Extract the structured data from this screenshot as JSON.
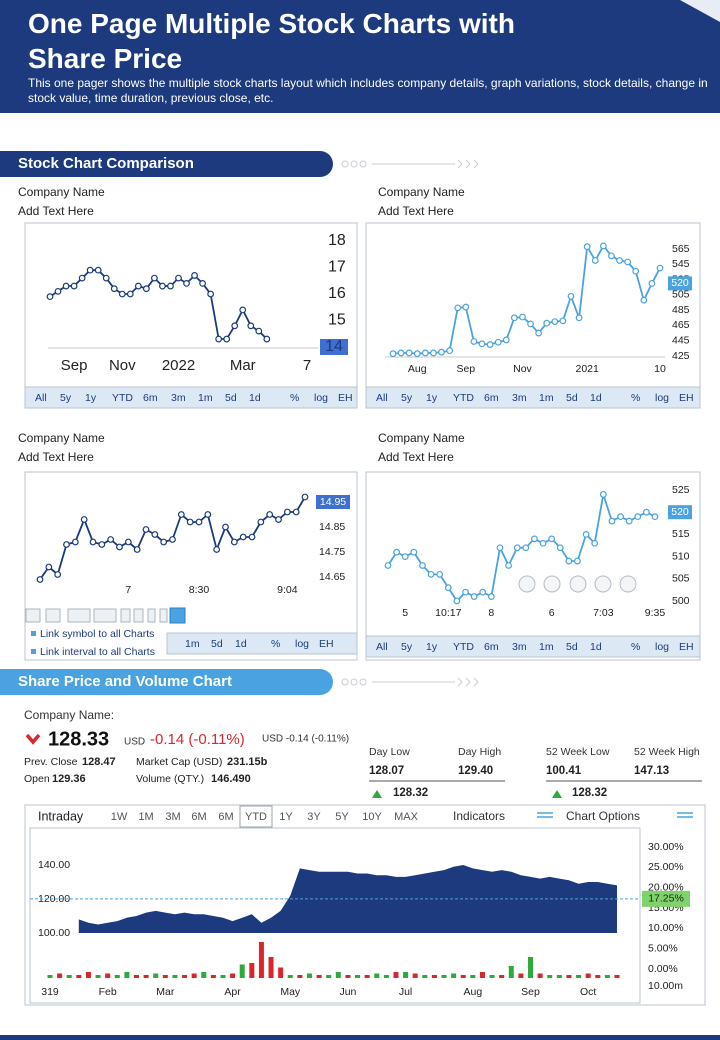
{
  "header": {
    "title": "One Page Multiple Stock Charts with Share Price",
    "subtitle": "This one pager shows the multiple stock charts layout which includes company details, graph variations, stock details, change in stock value, time duration, previous close, etc."
  },
  "sections": [
    "Stock Chart Comparison",
    "Share Price and Volume Chart"
  ],
  "panels": [
    {
      "company": "Company Name",
      "text": "Add Text Here"
    },
    {
      "company": "Company Name",
      "text": "Add Text Here"
    },
    {
      "company": "Company Name",
      "text": "Add Text Here"
    },
    {
      "company": "Company Name",
      "text": "Add Text Here"
    }
  ],
  "toolbar": [
    "All",
    "5y",
    "1y",
    "YTD",
    "6m",
    "3m",
    "1m",
    "5d",
    "1d",
    "%",
    "log",
    "EH"
  ],
  "link_labels": [
    "Link symbol to all Charts",
    "Link interval to all Charts"
  ],
  "quote": {
    "label": "Company Name:",
    "price": "128.33",
    "currency": "USD",
    "change": "-0.14 (-0.11%)",
    "change_small": "USD -0.14 (-0.11%)",
    "details": [
      {
        "label": "Prev. Close",
        "value": "128.47"
      },
      {
        "label": "Market Cap (USD)",
        "value": "231.15b"
      },
      {
        "label": "Open",
        "value": "129.36"
      },
      {
        "label": "Volume (QTY.)",
        "value": "146.490"
      }
    ],
    "stats": [
      {
        "label": "Day Low",
        "value": "128.07"
      },
      {
        "label": "Day High",
        "value": "129.40"
      },
      {
        "label": "52 Week Low",
        "value": "100.41"
      },
      {
        "label": "52 Week High",
        "value": "147.13"
      }
    ],
    "range_values": [
      "128.32",
      "128.32"
    ]
  },
  "big_chart_controls": {
    "interval": "Intraday",
    "tabs": [
      "1W",
      "1M",
      "3M",
      "6M",
      "6M",
      "YTD",
      "1Y",
      "3Y",
      "5Y",
      "10Y",
      "MAX"
    ],
    "active_tab": 5,
    "indicators": "Indicators",
    "options": "Chart Options"
  },
  "chart_data": [
    {
      "type": "line",
      "color": "#1c3a7d",
      "markers": true,
      "categories": [
        null,
        null,
        null,
        "Sep",
        null,
        null,
        null,
        null,
        null,
        "Nov",
        null,
        null,
        null,
        null,
        null,
        null,
        "2022",
        null,
        null,
        null,
        null,
        null,
        null,
        null,
        "Mar",
        null,
        null,
        null,
        null,
        null,
        null,
        null,
        "7"
      ],
      "values": [
        15.9,
        16.1,
        16.3,
        16.3,
        16.6,
        16.9,
        16.9,
        16.6,
        16.2,
        16.0,
        16.0,
        16.3,
        16.2,
        16.6,
        16.3,
        16.3,
        16.6,
        16.4,
        16.7,
        16.4,
        16.0,
        14.3,
        14.3,
        14.8,
        15.4,
        14.8,
        14.6,
        14.3,
        null,
        null,
        null,
        null,
        null
      ],
      "ylim": [
        14,
        18
      ],
      "yticks": [
        14,
        15,
        16,
        17,
        18
      ],
      "current": 14
    },
    {
      "type": "line",
      "color": "#4aa3e0",
      "markers": true,
      "categories": [
        null,
        null,
        null,
        "Aug",
        null,
        null,
        null,
        null,
        null,
        "Sep",
        null,
        null,
        null,
        null,
        null,
        null,
        "Nov",
        null,
        null,
        null,
        null,
        null,
        null,
        null,
        "2021",
        null,
        null,
        null,
        null,
        null,
        null,
        null,
        null,
        "10"
      ],
      "values": [
        428,
        429,
        429,
        428,
        429,
        429,
        430,
        432,
        488,
        489,
        444,
        441,
        440,
        443,
        446,
        475,
        476,
        467,
        455,
        468,
        470,
        471,
        503,
        475,
        568,
        550,
        569,
        556,
        550,
        548,
        536,
        498,
        520,
        540
      ],
      "ylim": [
        425,
        565
      ],
      "yticks": [
        425,
        445,
        465,
        485,
        505,
        525,
        545,
        565
      ],
      "current": 520
    },
    {
      "type": "line",
      "color": "#1c3a7d",
      "markers": true,
      "categories": [
        null,
        null,
        null,
        null,
        null,
        null,
        null,
        null,
        null,
        null,
        "7",
        null,
        null,
        null,
        null,
        null,
        null,
        null,
        "8:30",
        null,
        null,
        null,
        null,
        null,
        null,
        null,
        null,
        null,
        "9:04",
        null,
        null
      ],
      "values": [
        14.64,
        14.69,
        14.66,
        14.78,
        14.79,
        14.88,
        14.79,
        14.78,
        14.8,
        14.77,
        14.79,
        14.76,
        14.84,
        14.82,
        14.79,
        14.8,
        14.9,
        14.87,
        14.87,
        14.9,
        14.76,
        14.85,
        14.79,
        14.81,
        14.81,
        14.87,
        14.9,
        14.88,
        14.91,
        14.91,
        14.97
      ],
      "ylim": [
        14.65,
        14.95
      ],
      "yticks": [
        14.65,
        14.75,
        14.85,
        14.95
      ],
      "current": 14.95
    },
    {
      "type": "line",
      "color": "#4aa3e0",
      "markers": true,
      "categories": [
        null,
        null,
        "5",
        null,
        null,
        null,
        null,
        "10:17",
        null,
        null,
        null,
        null,
        "8",
        null,
        null,
        null,
        null,
        null,
        null,
        "6",
        null,
        null,
        null,
        null,
        null,
        "7:03",
        null,
        null,
        null,
        null,
        null,
        "9:35"
      ],
      "values": [
        508,
        511,
        510,
        511,
        508,
        506,
        506,
        503,
        500,
        502,
        501,
        502,
        501,
        512,
        508,
        512,
        512,
        514,
        513,
        514,
        512,
        509,
        509,
        515,
        513,
        524,
        518,
        519,
        518,
        519,
        520,
        519
      ],
      "ylim": [
        500,
        525
      ],
      "yticks": [
        500,
        505,
        510,
        515,
        520,
        525
      ],
      "current": 520
    },
    {
      "type": "area",
      "color": "#1c3a7d",
      "categories": [
        "319",
        null,
        null,
        null,
        null,
        null,
        "Feb",
        null,
        null,
        null,
        null,
        null,
        "Mar",
        null,
        null,
        null,
        null,
        null,
        null,
        "Apr",
        null,
        null,
        null,
        null,
        null,
        "May",
        null,
        null,
        null,
        null,
        null,
        "Jun",
        null,
        null,
        null,
        null,
        null,
        "Jul",
        null,
        null,
        null,
        null,
        null,
        null,
        "Aug",
        null,
        null,
        null,
        null,
        null,
        "Sep",
        null,
        null,
        null,
        null,
        null,
        "Oct",
        null,
        null,
        null
      ],
      "values": [
        null,
        null,
        null,
        108,
        106,
        105,
        106,
        107,
        109,
        110,
        112,
        113,
        112,
        111,
        112,
        111,
        111,
        110,
        109,
        107,
        109,
        111,
        106,
        109,
        113,
        122,
        138,
        137,
        136,
        136,
        136,
        136,
        135,
        135,
        134,
        134,
        133,
        133,
        134,
        135,
        136,
        137,
        139,
        140,
        138,
        137,
        136,
        137,
        136,
        134,
        133,
        132,
        133,
        132,
        131,
        129,
        130,
        130,
        129,
        128
      ],
      "ylim": [
        100,
        150
      ],
      "yticks": [
        {
          "value": 100,
          "label": "100.00"
        },
        {
          "value": 120,
          "label": "120.00"
        },
        {
          "value": 140,
          "label": "140.00"
        }
      ],
      "y2lim": [
        0,
        30
      ],
      "y2ticks": [
        {
          "value": 30,
          "label": "30.00%"
        },
        {
          "value": 25,
          "label": "25.00%"
        },
        {
          "value": 20,
          "label": "20.00%"
        },
        {
          "value": 15,
          "label": "15.00%"
        },
        {
          "value": 10,
          "label": "10.00%"
        },
        {
          "value": 5,
          "label": "5.00%"
        },
        {
          "value": 0,
          "label": "0.00%"
        }
      ],
      "current": {
        "value": 17.25,
        "label": "17.25%"
      },
      "volume": [
        1,
        1.5,
        1,
        1,
        2,
        1,
        1.5,
        1,
        2,
        1,
        1,
        1.5,
        1,
        1,
        1,
        1.5,
        2,
        1,
        1,
        1.5,
        4.5,
        5,
        12,
        7,
        3.5,
        1,
        1,
        1.5,
        1,
        1,
        2,
        1,
        1,
        1,
        1.5,
        1,
        2,
        2,
        1.5,
        1,
        1,
        1,
        1.5,
        1,
        1,
        2,
        1,
        1,
        4,
        1.5,
        7,
        1.5,
        1,
        1,
        1,
        1,
        1.5,
        1,
        1,
        1
      ],
      "volume_up": [
        true,
        false,
        true,
        false,
        false,
        true,
        false,
        true,
        true,
        false,
        false,
        true,
        false,
        true,
        false,
        false,
        true,
        false,
        true,
        false,
        true,
        false,
        false,
        false,
        false,
        true,
        false,
        true,
        false,
        true,
        true,
        false,
        true,
        false,
        true,
        true,
        false,
        true,
        false,
        true,
        false,
        true,
        true,
        false,
        true,
        false,
        true,
        false,
        true,
        false,
        true,
        false,
        true,
        true,
        false,
        true,
        false,
        false,
        true,
        false
      ],
      "up_color": "#2eaa3c",
      "down_color": "#d9262b",
      "volume_ylim": [
        0,
        20
      ],
      "volume_label": "10.00m"
    }
  ]
}
